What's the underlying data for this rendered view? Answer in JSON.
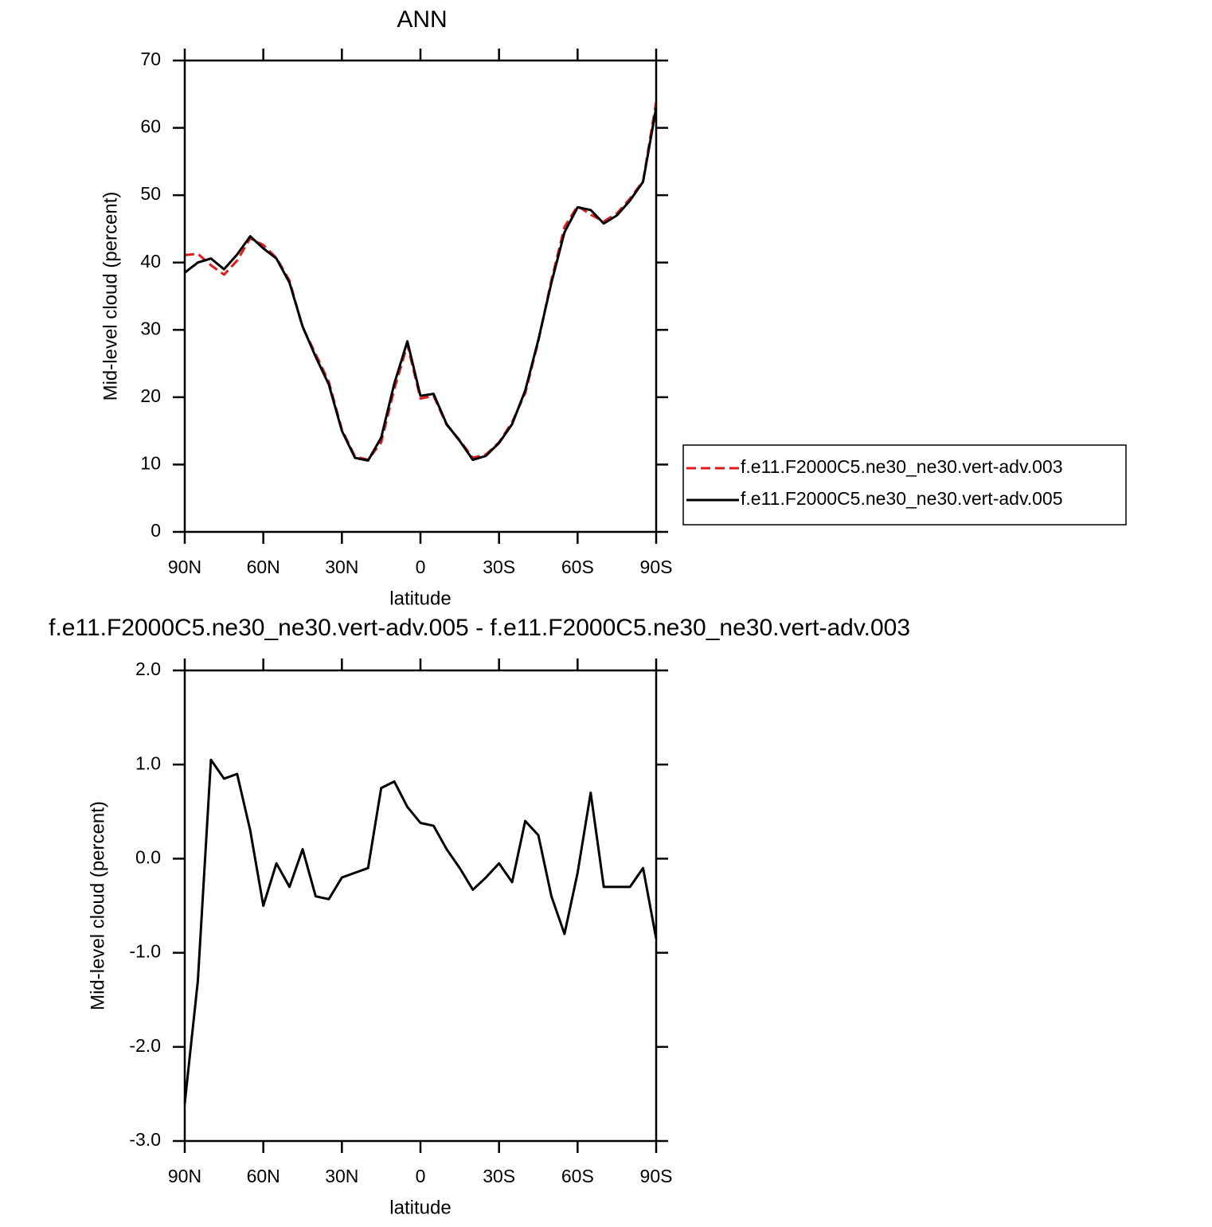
{
  "chart_data": [
    {
      "type": "line",
      "title": "ANN",
      "xlabel": "latitude",
      "ylabel": "Mid-level cloud (percent)",
      "x": [
        90,
        85,
        80,
        75,
        70,
        65,
        60,
        55,
        50,
        45,
        40,
        35,
        30,
        25,
        20,
        15,
        10,
        5,
        0,
        -5,
        -10,
        -15,
        -20,
        -25,
        -30,
        -35,
        -40,
        -45,
        -50,
        -55,
        -60,
        -65,
        -70,
        -75,
        -80,
        -85,
        -90
      ],
      "series": [
        {
          "name": "f.e11.F2000C5.ne30_ne30.vert-adv.003",
          "color": "#e31a1c",
          "line_style": "dashed",
          "values": [
            41.1,
            41.3,
            39.6,
            38.2,
            40.3,
            43.6,
            42.6,
            40.7,
            37.3,
            30.4,
            26.4,
            22.3,
            15.2,
            11.2,
            10.7,
            13.3,
            21.2,
            27.8,
            19.8,
            20.2,
            15.9,
            13.6,
            11.0,
            11.5,
            13.3,
            16.3,
            20.6,
            28.3,
            37.4,
            45.3,
            48.4,
            47.1,
            46.1,
            47.3,
            49.5,
            52.1,
            63.9
          ]
        },
        {
          "name": "f.e11.F2000C5.ne30_ne30.vert-adv.005",
          "color": "#000000",
          "line_style": "solid",
          "values": [
            38.5,
            40.0,
            40.6,
            39.0,
            41.2,
            43.9,
            42.1,
            40.6,
            37.0,
            30.5,
            26.0,
            21.9,
            15.0,
            11.0,
            10.6,
            14.0,
            22.0,
            28.3,
            20.2,
            20.5,
            16.0,
            13.5,
            10.7,
            11.3,
            13.2,
            16.0,
            21.0,
            28.5,
            37.0,
            44.5,
            48.2,
            47.8,
            45.8,
            47.0,
            49.2,
            52.0,
            63.0
          ]
        }
      ],
      "xlim": [
        90,
        -90
      ],
      "xticks": [
        {
          "value": 90,
          "label": "90N"
        },
        {
          "value": 60,
          "label": "60N"
        },
        {
          "value": 30,
          "label": "30N"
        },
        0,
        {
          "value": -30,
          "label": "30S"
        },
        {
          "value": -60,
          "label": "60S"
        },
        {
          "value": -90,
          "label": "90S"
        }
      ],
      "ylim": [
        0,
        70
      ],
      "yticks": [
        0,
        10,
        20,
        30,
        40,
        50,
        60,
        70
      ],
      "legend": "right"
    },
    {
      "type": "line",
      "title": "f.e11.F2000C5.ne30_ne30.vert-adv.005 - f.e11.F2000C5.ne30_ne30.vert-adv.003",
      "xlabel": "latitude",
      "ylabel": "Mid-level cloud (percent)",
      "x": [
        90,
        85,
        80,
        75,
        70,
        65,
        60,
        55,
        50,
        45,
        40,
        35,
        30,
        25,
        20,
        15,
        10,
        5,
        0,
        -5,
        -10,
        -15,
        -20,
        -25,
        -30,
        -35,
        -40,
        -45,
        -50,
        -55,
        -60,
        -65,
        -70,
        -75,
        -80,
        -85,
        -90
      ],
      "series": [
        {
          "color": "#000000",
          "line_style": "solid",
          "values": [
            -2.6,
            -1.3,
            1.05,
            0.85,
            0.9,
            0.3,
            -0.5,
            -0.05,
            -0.3,
            0.1,
            -0.4,
            -0.43,
            -0.2,
            -0.15,
            -0.1,
            0.75,
            0.82,
            0.55,
            0.38,
            0.35,
            0.1,
            -0.1,
            -0.33,
            -0.2,
            -0.05,
            -0.25,
            0.4,
            0.25,
            -0.4,
            -0.8,
            -0.15,
            0.7,
            -0.3,
            -0.3,
            -0.3,
            -0.1,
            -0.85
          ]
        }
      ],
      "xlim": [
        90,
        -90
      ],
      "xticks": [
        {
          "value": 90,
          "label": "90N"
        },
        {
          "value": 60,
          "label": "60N"
        },
        {
          "value": 30,
          "label": "30N"
        },
        0,
        {
          "value": -30,
          "label": "30S"
        },
        {
          "value": -60,
          "label": "60S"
        },
        {
          "value": -90,
          "label": "90S"
        }
      ],
      "ylim": [
        -3,
        2
      ],
      "yticks": [
        {
          "value": -3,
          "label": "-3.0"
        },
        {
          "value": -2,
          "label": "-2.0"
        },
        {
          "value": -1,
          "label": "-1.0"
        },
        {
          "value": 0,
          "label": "0.0"
        },
        {
          "value": 1,
          "label": "1.0"
        },
        {
          "value": 2,
          "label": "2.0"
        }
      ]
    }
  ]
}
